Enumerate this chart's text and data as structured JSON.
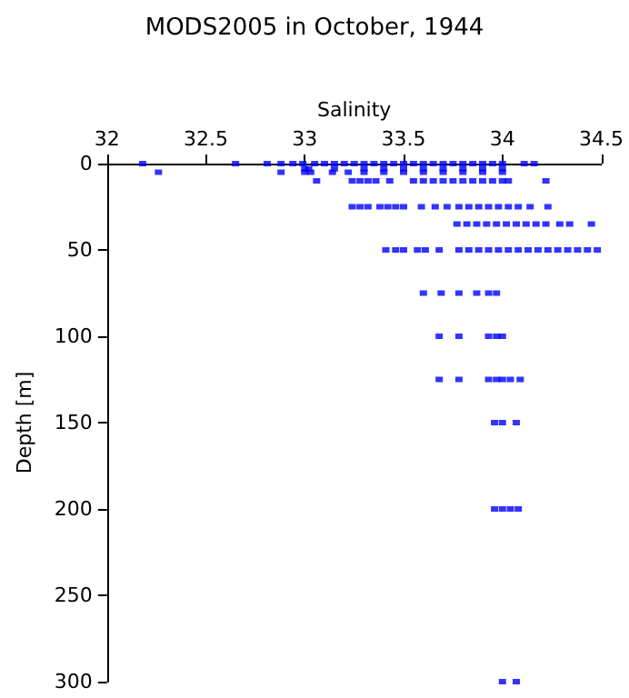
{
  "chart_data": {
    "type": "scatter",
    "title": "MODS2005 in October, 1944",
    "xlabel": "Salinity",
    "ylabel": "Depth [m]",
    "x": [
      32.18,
      32.65,
      32.81,
      32.88,
      32.94,
      32.99,
      33.05,
      33.1,
      33.15,
      33.2,
      33.25,
      33.3,
      33.35,
      33.4,
      33.45,
      33.5,
      33.55,
      33.6,
      33.65,
      33.7,
      33.75,
      33.8,
      33.85,
      33.9,
      33.95,
      34.0,
      34.11,
      34.16,
      33.0,
      33.02,
      33.15,
      33.3,
      33.4,
      33.5,
      33.6,
      33.7,
      33.8,
      33.9,
      34.0,
      32.26,
      32.88,
      33.0,
      33.03,
      33.14,
      33.22,
      33.3,
      33.4,
      33.5,
      33.6,
      33.7,
      33.8,
      33.9,
      34.0,
      33.06,
      33.24,
      33.28,
      33.32,
      33.36,
      33.43,
      33.55,
      33.6,
      33.65,
      33.7,
      33.75,
      33.8,
      33.85,
      33.9,
      33.95,
      34.0,
      34.03,
      34.22,
      33.24,
      33.28,
      33.32,
      33.38,
      33.42,
      33.46,
      33.5,
      33.59,
      33.66,
      33.72,
      33.78,
      33.83,
      33.88,
      33.93,
      33.98,
      34.03,
      34.08,
      34.14,
      34.23,
      33.77,
      33.82,
      33.87,
      33.92,
      33.97,
      34.02,
      34.07,
      34.12,
      34.17,
      34.22,
      34.29,
      34.34,
      34.45,
      33.41,
      33.46,
      33.5,
      33.57,
      33.61,
      33.68,
      33.78,
      33.83,
      33.88,
      33.93,
      33.98,
      34.03,
      34.08,
      34.13,
      34.18,
      34.23,
      34.28,
      34.33,
      34.38,
      34.43,
      34.48,
      33.6,
      33.69,
      33.78,
      33.87,
      33.93,
      33.97,
      33.68,
      33.78,
      33.93,
      33.97,
      34.0,
      33.68,
      33.78,
      33.93,
      33.97,
      34.0,
      34.04,
      34.09,
      33.96,
      34.0,
      34.07,
      33.96,
      34.0,
      34.04,
      34.08,
      34.0,
      34.07
    ],
    "values": [
      0,
      0,
      0,
      0,
      0,
      0,
      0,
      0,
      0,
      0,
      0,
      0,
      0,
      0,
      0,
      0,
      0,
      0,
      0,
      0,
      0,
      0,
      0,
      0,
      0,
      0,
      0,
      0,
      3,
      3,
      3,
      3,
      3,
      3,
      3,
      3,
      3,
      3,
      3,
      5,
      5,
      5,
      5,
      5,
      5,
      5,
      5,
      5,
      5,
      5,
      5,
      5,
      5,
      10,
      10,
      10,
      10,
      10,
      10,
      10,
      10,
      10,
      10,
      10,
      10,
      10,
      10,
      10,
      10,
      10,
      10,
      25,
      25,
      25,
      25,
      25,
      25,
      25,
      25,
      25,
      25,
      25,
      25,
      25,
      25,
      25,
      25,
      25,
      25,
      25,
      35,
      35,
      35,
      35,
      35,
      35,
      35,
      35,
      35,
      35,
      35,
      35,
      35,
      50,
      50,
      50,
      50,
      50,
      50,
      50,
      50,
      50,
      50,
      50,
      50,
      50,
      50,
      50,
      50,
      50,
      50,
      50,
      50,
      50,
      75,
      75,
      75,
      75,
      75,
      75,
      100,
      100,
      100,
      100,
      100,
      125,
      125,
      125,
      125,
      125,
      125,
      125,
      150,
      150,
      150,
      200,
      200,
      200,
      200,
      300,
      300
    ],
    "color": "#0000ff",
    "marker": "square",
    "xlim": [
      32,
      34.5
    ],
    "xticks": [
      32,
      32.5,
      33,
      33.5,
      34,
      34.5
    ],
    "ylim": [
      300,
      0
    ],
    "yticks": [
      0,
      50,
      100,
      150,
      200,
      250,
      300
    ],
    "grid": false
  }
}
